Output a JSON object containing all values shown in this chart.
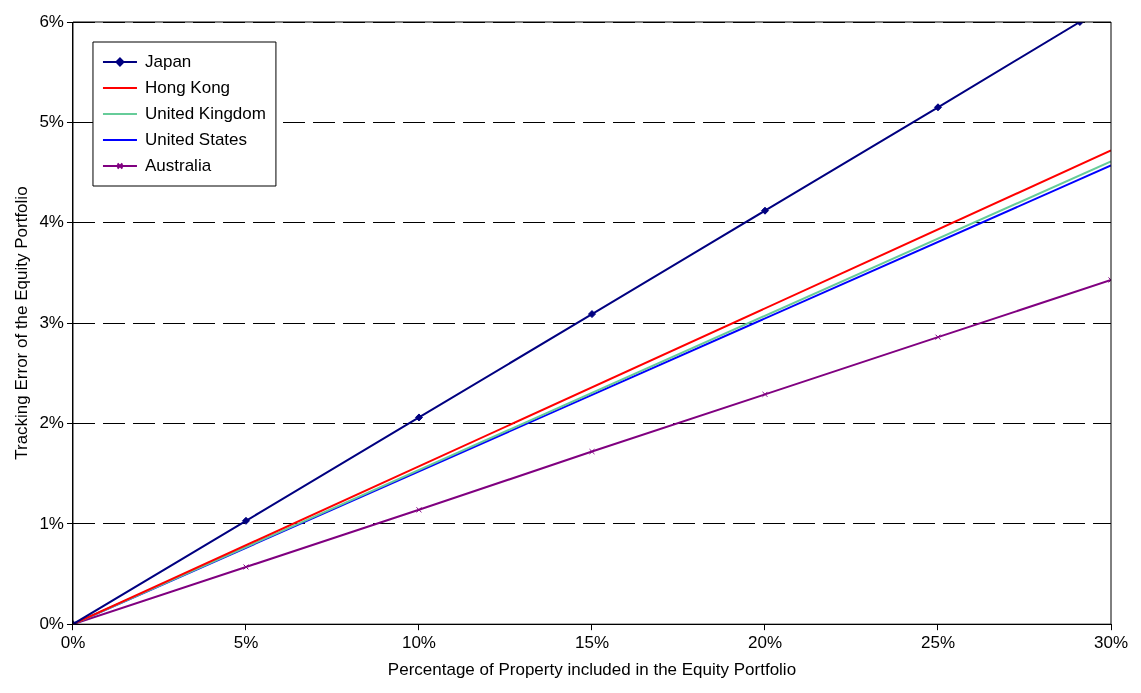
{
  "chart_data": {
    "type": "line",
    "xlabel": "Percentage of Property included in the Equity Portfolio",
    "ylabel": "Tracking Error of the Equity Portfolio",
    "xlim": [
      0,
      30
    ],
    "xticks": [
      {
        "value": 0,
        "label": "0%"
      },
      {
        "value": 5,
        "label": "5%"
      },
      {
        "value": 10,
        "label": "10%"
      },
      {
        "value": 15,
        "label": "15%"
      },
      {
        "value": 20,
        "label": "20%"
      },
      {
        "value": 25,
        "label": "25%"
      },
      {
        "value": 30,
        "label": "30%"
      }
    ],
    "ylim": [
      0,
      6
    ],
    "yticks": [
      {
        "value": 0,
        "label": "0%"
      },
      {
        "value": 1,
        "label": "1%"
      },
      {
        "value": 2,
        "label": "2%"
      },
      {
        "value": 3,
        "label": "3%"
      },
      {
        "value": 4,
        "label": "4%"
      },
      {
        "value": 5,
        "label": "5%"
      },
      {
        "value": 6,
        "label": "6%"
      }
    ],
    "grid": "y",
    "legend": "top left",
    "line_style": "solid",
    "series": [
      {
        "name": "Japan",
        "color": "#000080",
        "marker": "diamond",
        "x": [
          0,
          5,
          10,
          15,
          20,
          25,
          29.1
        ],
        "values": [
          0,
          1.03,
          2.06,
          3.09,
          4.12,
          5.15,
          6.0
        ]
      },
      {
        "name": "Hong Kong",
        "color": "#ff0000",
        "marker": "none",
        "x": [
          0,
          30
        ],
        "values": [
          0,
          4.72
        ]
      },
      {
        "name": "United Kingdom",
        "color": "#66cc99",
        "marker": "none",
        "x": [
          0,
          30
        ],
        "values": [
          0,
          4.61
        ]
      },
      {
        "name": "United States",
        "color": "#0000ff",
        "marker": "none",
        "x": [
          0,
          30
        ],
        "values": [
          0,
          4.57
        ]
      },
      {
        "name": "Australia",
        "color": "#800080",
        "marker": "cross",
        "x": [
          0,
          5,
          10,
          15,
          20,
          25,
          30
        ],
        "values": [
          0,
          0.57,
          1.14,
          1.72,
          2.29,
          2.86,
          3.43
        ]
      }
    ]
  }
}
